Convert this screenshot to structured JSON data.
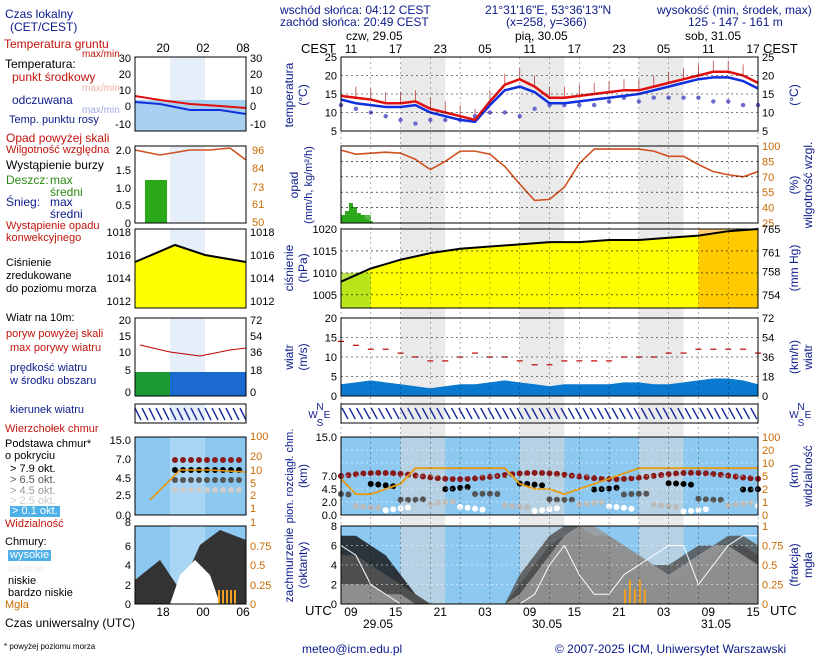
{
  "header": {
    "sunrise": "wschód słońca: 04:12 CEST",
    "sunset": "zachód słońca: 20:49 CEST",
    "coords": "21°31'16\"E, 53°36'13\"N",
    "grid": "(x=258, y=366)",
    "elev_label": "wysokość (min, środek, max)",
    "elev_values": "125 - 147 - 161 m"
  },
  "time": {
    "cest": "CEST",
    "utc": "UTC",
    "day_labels": [
      "czw, 29.05",
      "pią, 30.05",
      "sob, 31.05"
    ],
    "cest_ticks": [
      "11",
      "17",
      "23",
      "05",
      "11",
      "17",
      "23",
      "05",
      "11",
      "17"
    ],
    "utc_ticks": [
      "09",
      "15",
      "21",
      "03",
      "09",
      "15",
      "21",
      "03",
      "09",
      "15"
    ],
    "utc_dates": [
      "29.05",
      "30.05",
      "31.05"
    ],
    "legend_top_ticks": [
      "20",
      "02",
      "08"
    ],
    "legend_bottom_ticks": [
      "18",
      "00",
      "06"
    ]
  },
  "legend": {
    "local_time": "Czas lokalny",
    "local_time2": "(CET/CEST)",
    "soil_temp": "Temperatura gruntu",
    "max_min": "max/min",
    "temperature": "Temperatura:",
    "midpoint": "punkt środkowy",
    "max_min_faint": "max/min",
    "feels": "odczuwana",
    "max_min_faint2": "max/min",
    "dewpoint": "Temp. punktu rosy",
    "precip_over": "Opad powyżej skali",
    "humidity": "Wilgotność względna",
    "storm": "Wystąpienie burzy",
    "rain": "Deszcz:",
    "rain_max": "max",
    "rain_mean": "średni",
    "snow": "Śnieg:",
    "snow_max": "max",
    "snow_mean": "średni",
    "conv1": "Wystąpienie opadu",
    "conv2": "konwekcyjnego",
    "pressure1": "Ciśnienie",
    "pressure2": "zredukowane",
    "pressure3": "do poziomu morza",
    "wind10": "Wiatr na 10m:",
    "gust_over": "poryw powyżej skali",
    "gust_max": "max porywy wiatru",
    "wind_mean1": "prędkość wiatru",
    "wind_mean2": "w środku obszaru",
    "wind_dir": "kierunek wiatru",
    "cloud_top": "Wierzchołek chmur",
    "cloud_base1": "Podstawa chmur*",
    "cloud_base2": "o pokryciu",
    "okt": [
      "> 7.9 okt.",
      "> 6.5 okt.",
      "> 4.5 okt.",
      "> 2.5 okt.",
      "> 0.1 okt."
    ],
    "visibility": "Widzialność",
    "clouds": "Chmury:",
    "high": "wysokie",
    "mid": "średnie",
    "low": "niskie",
    "very_low": "bardzo niskie",
    "fog": "Mgła",
    "utc": "Czas uniwersalny (UTC)",
    "footnote": "* powyżej poziomu morza"
  },
  "footer": {
    "email": "meteo@icm.edu.pl",
    "copyright": "© 2007-2025 ICM, Uniwersytet Warszawski"
  },
  "units": {
    "temperature": "temperatura",
    "temperature_unit": "(°C)",
    "precip": "opad",
    "precip_unit": "(mm/h, kg/m²/h)",
    "humidity": "wilgotność wzgl.",
    "humidity_unit": "(%)",
    "pressure": "ciśnienie",
    "pressure_unit": "(hPa)",
    "pressure_unit_r": "(mm Hg)",
    "wind": "wiatr",
    "wind_unit": "(m/s)",
    "wind_unit_r": "(km/h)",
    "cloud_base": "pion. rozciągł. chm.",
    "cloud_base_unit": "(km)",
    "visibility": "widzialność",
    "visibility_unit": "(km)",
    "cloud_cover": "zachmurzenie",
    "cloud_cover_unit": "(oktanty)",
    "fog": "mgła",
    "fog_unit": "(frakcja)"
  },
  "compass": {
    "n": "N",
    "w": "W",
    "e": "E",
    "s": "S"
  },
  "colors": {
    "temp_line": "#e01010",
    "feels_line": "#1030e0",
    "dew_points": "#6a6ad0",
    "humidity_line": "#d05020",
    "pressure_fill": "#ffff00",
    "wind_fill": "#0a7ad0",
    "gust_line": "#c00000",
    "sky": "#8cc8f0",
    "night_band": "#d8d8d8"
  },
  "chart_data": [
    {
      "type": "line",
      "name": "temperatura",
      "ylabel": "temperatura (°C)",
      "ylim": [
        5,
        25
      ],
      "x_hours": [
        0,
        3,
        6,
        9,
        12,
        15,
        18,
        21,
        24,
        27,
        30,
        33,
        36,
        39,
        42,
        45,
        48,
        51,
        54,
        57,
        60,
        63,
        66,
        69,
        72,
        75,
        78,
        81,
        84
      ],
      "series": [
        {
          "name": "temperatura",
          "values": [
            14.5,
            14,
            13.5,
            12.5,
            12.5,
            13,
            11,
            10,
            9,
            8,
            13,
            17.5,
            19,
            17,
            14,
            14,
            14.5,
            15,
            15.5,
            16,
            16,
            17,
            18,
            19,
            20,
            21,
            21,
            20,
            18
          ]
        },
        {
          "name": "odczuwana",
          "values": [
            13.5,
            12.5,
            12,
            11.5,
            11.5,
            12,
            10,
            9,
            8,
            7.5,
            12,
            16,
            17,
            15.5,
            12.5,
            12.5,
            13,
            13.5,
            14,
            14.5,
            15,
            16,
            17,
            18,
            19,
            19.5,
            19.5,
            18.5,
            16.5
          ]
        },
        {
          "name": "Temp. punktu rosy",
          "values": [
            12,
            11,
            10,
            9,
            8,
            7,
            8,
            8,
            8,
            9,
            10,
            10,
            9,
            11,
            12,
            12,
            12,
            12,
            13,
            14,
            13,
            14,
            14,
            14,
            14,
            13,
            13,
            12,
            12
          ]
        }
      ]
    },
    {
      "type": "line",
      "name": "wilgotność",
      "ylabel": "wilgotność wzgl. (%)",
      "ylim": [
        25,
        100
      ],
      "x_hours": [
        0,
        3,
        6,
        9,
        12,
        15,
        18,
        21,
        24,
        27,
        30,
        33,
        36,
        39,
        42,
        45,
        48,
        51,
        54,
        57,
        60,
        63,
        66,
        69,
        72,
        75,
        78,
        81,
        84
      ],
      "series": [
        {
          "name": "Wilgotność względna",
          "values": [
            96,
            92,
            93,
            94,
            93,
            87,
            77,
            85,
            95,
            95,
            92,
            80,
            63,
            47,
            48,
            60,
            83,
            97,
            97,
            97,
            97,
            95,
            90,
            90,
            82,
            75,
            72,
            70,
            75
          ]
        }
      ]
    },
    {
      "type": "area",
      "name": "ciśnienie",
      "ylabel": "ciśnienie (hPa)",
      "ylim": [
        1002,
        1020
      ],
      "x_hours": [
        0,
        6,
        12,
        18,
        24,
        30,
        36,
        42,
        48,
        54,
        60,
        66,
        72,
        78,
        84
      ],
      "series": [
        {
          "name": "Ciśnienie",
          "values": [
            1008,
            1011,
            1013,
            1014.5,
            1015.5,
            1016,
            1016.5,
            1017,
            1017,
            1017.5,
            1017.5,
            1018,
            1018.5,
            1019.5,
            1020
          ]
        }
      ]
    },
    {
      "type": "area",
      "name": "wiatr",
      "ylabel": "wiatr (m/s)",
      "ylim": [
        0,
        20
      ],
      "x_hours": [
        0,
        3,
        6,
        9,
        12,
        15,
        18,
        21,
        24,
        27,
        30,
        33,
        36,
        39,
        42,
        45,
        48,
        51,
        54,
        57,
        60,
        63,
        66,
        69,
        72,
        75,
        78,
        81,
        84
      ],
      "series": [
        {
          "name": "prędkość wiatru",
          "values": [
            3,
            3.5,
            4,
            3.5,
            3,
            2.5,
            2,
            2.5,
            3,
            3,
            3.5,
            4,
            3.5,
            3,
            2.5,
            3,
            3,
            3,
            3,
            3.5,
            3.5,
            3,
            3,
            3.5,
            4,
            4.5,
            4.5,
            4,
            3
          ]
        },
        {
          "name": "max porywy wiatru",
          "values": [
            14,
            13,
            12,
            12,
            11,
            10,
            9,
            9,
            10,
            11,
            10,
            10,
            9,
            8,
            8,
            9,
            9,
            9,
            9,
            10,
            10,
            10,
            11,
            11,
            12,
            12,
            12,
            12,
            11
          ]
        }
      ]
    }
  ]
}
